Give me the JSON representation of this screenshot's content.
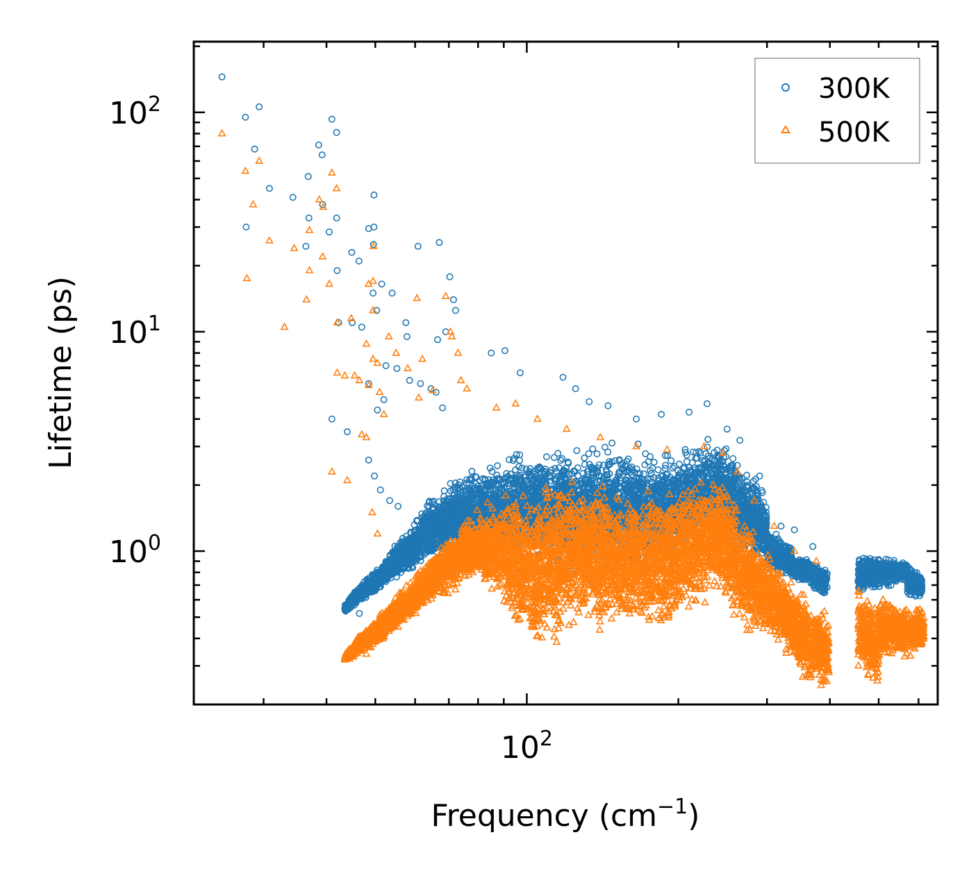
{
  "chart_data": {
    "type": "scatter",
    "xlabel": "Frequency (cm",
    "xlabel_sup": "−1",
    "xlabel_end": ")",
    "ylabel": "Lifetime (ps)",
    "xscale": "log",
    "yscale": "log",
    "xlim": [
      21.8,
      655
    ],
    "ylim": [
      0.2,
      210
    ],
    "x_tick_labels": [
      {
        "base": "10",
        "exp": "2",
        "value": 100
      }
    ],
    "y_tick_labels": [
      {
        "base": "10",
        "exp": "0",
        "value": 1
      },
      {
        "base": "10",
        "exp": "1",
        "value": 10
      },
      {
        "base": "10",
        "exp": "2",
        "value": 100
      }
    ],
    "legend": {
      "position": "top-right",
      "entries": [
        "300K",
        "500K"
      ]
    },
    "series": [
      {
        "name": "300K",
        "marker": "circle",
        "color": "#1f77b4",
        "outliers": [
          [
            24.8,
            145
          ],
          [
            27.6,
            95
          ],
          [
            28.8,
            68
          ],
          [
            29.4,
            106
          ],
          [
            30.8,
            45
          ],
          [
            27.7,
            30
          ],
          [
            34.3,
            41
          ],
          [
            36.4,
            24.5
          ],
          [
            36.8,
            51
          ],
          [
            36.9,
            33
          ],
          [
            38.6,
            71
          ],
          [
            39.2,
            64
          ],
          [
            39.3,
            38
          ],
          [
            41,
            93
          ],
          [
            41.9,
            81
          ],
          [
            40.5,
            28.5
          ],
          [
            41.9,
            33
          ],
          [
            42,
            19
          ],
          [
            44.9,
            23
          ],
          [
            46.4,
            21
          ],
          [
            48.5,
            29.5
          ],
          [
            49.7,
            42
          ],
          [
            49.7,
            30
          ],
          [
            49.6,
            25
          ],
          [
            42.3,
            11
          ],
          [
            45,
            11
          ],
          [
            47,
            10.5
          ],
          [
            49.5,
            15
          ],
          [
            50.3,
            12.5
          ],
          [
            51.5,
            16.5
          ],
          [
            54,
            15
          ],
          [
            57.5,
            11
          ],
          [
            57.8,
            9.5
          ],
          [
            60.8,
            24.5
          ],
          [
            67,
            25.5
          ],
          [
            70.3,
            17.8
          ],
          [
            71.5,
            14
          ],
          [
            72.2,
            12.5
          ],
          [
            69,
            10
          ],
          [
            66.5,
            9.2
          ],
          [
            41,
            4
          ],
          [
            44,
            3.5
          ],
          [
            52.5,
            7
          ],
          [
            55.2,
            6.8
          ],
          [
            58.5,
            6
          ],
          [
            61.5,
            5.8
          ],
          [
            64.5,
            5.5
          ],
          [
            66,
            5.3
          ],
          [
            48.5,
            5.8
          ],
          [
            50.5,
            4.4
          ],
          [
            52,
            4.9
          ],
          [
            68,
            4.5
          ],
          [
            85,
            8
          ],
          [
            90.5,
            8.2
          ],
          [
            97,
            6.5
          ],
          [
            118,
            6.2
          ],
          [
            125,
            5.5
          ],
          [
            133,
            4.8
          ],
          [
            145,
            4.6
          ],
          [
            165,
            4
          ],
          [
            185,
            4.2
          ],
          [
            210,
            4.3
          ],
          [
            228,
            4.7
          ],
          [
            250,
            3.6
          ],
          [
            265,
            3.2
          ],
          [
            290,
            2.2
          ],
          [
            320,
            1.3
          ],
          [
            340,
            1.25
          ],
          [
            370,
            1.05
          ],
          [
            48.5,
            2.6
          ],
          [
            49.8,
            2.2
          ],
          [
            51.2,
            1.9
          ],
          [
            53.4,
            1.7
          ],
          [
            55.5,
            1.6
          ],
          [
            43.5,
            0.55
          ],
          [
            45,
            0.6
          ],
          [
            46.5,
            0.52
          ]
        ],
        "bands": [
          {
            "x": [
              43.5,
              52
            ],
            "lo": [
              0.52,
              0.68
            ],
            "hi": [
              0.58,
              0.9
            ]
          },
          {
            "x": [
              52,
              58
            ],
            "lo": [
              0.68,
              0.75
            ],
            "hi": [
              0.9,
              1.3
            ]
          },
          {
            "x": [
              58,
              70
            ],
            "lo": [
              0.75,
              0.92
            ],
            "hi": [
              1.3,
              2.2
            ]
          },
          {
            "x": [
              70,
              95
            ],
            "lo": [
              0.92,
              0.82
            ],
            "hi": [
              2.2,
              3.0
            ]
          },
          {
            "x": [
              95,
              140
            ],
            "lo": [
              0.82,
              0.78
            ],
            "hi": [
              3.0,
              3.2
            ]
          },
          {
            "x": [
              140,
              200
            ],
            "lo": [
              0.78,
              0.82
            ],
            "hi": [
              3.2,
              3.1
            ]
          },
          {
            "x": [
              200,
              240
            ],
            "lo": [
              0.82,
              1.0
            ],
            "hi": [
              3.1,
              3.6
            ]
          },
          {
            "x": [
              240,
              275
            ],
            "lo": [
              1.0,
              0.85
            ],
            "hi": [
              3.6,
              2.5
            ]
          },
          {
            "x": [
              275,
              300
            ],
            "lo": [
              0.85,
              0.85
            ],
            "hi": [
              2.5,
              1.9
            ]
          },
          {
            "x": [
              300,
              335
            ],
            "lo": [
              0.8,
              0.75
            ],
            "hi": [
              1.3,
              1.1
            ]
          },
          {
            "x": [
              335,
              365
            ],
            "lo": [
              0.72,
              0.72
            ],
            "hi": [
              1.0,
              0.92
            ]
          },
          {
            "x": [
              365,
              395
            ],
            "lo": [
              0.68,
              0.6
            ],
            "hi": [
              0.92,
              0.85
            ]
          },
          {
            "x": [
              455,
              570
            ],
            "lo": [
              0.62,
              0.72
            ],
            "hi": [
              0.98,
              0.92
            ]
          },
          {
            "x": [
              570,
              610
            ],
            "lo": [
              0.6,
              0.6
            ],
            "hi": [
              0.9,
              0.8
            ]
          }
        ]
      },
      {
        "name": "500K",
        "marker": "triangle",
        "color": "#ff7f0e",
        "outliers": [
          [
            24.8,
            80
          ],
          [
            27.6,
            54
          ],
          [
            28.6,
            38
          ],
          [
            29.4,
            60
          ],
          [
            30.8,
            26
          ],
          [
            27.8,
            17.5
          ],
          [
            33,
            10.5
          ],
          [
            34.5,
            24
          ],
          [
            36.5,
            14
          ],
          [
            37,
            29
          ],
          [
            37,
            19
          ],
          [
            38.7,
            40
          ],
          [
            39.4,
            37
          ],
          [
            39.3,
            22
          ],
          [
            40.5,
            16.5
          ],
          [
            41,
            53
          ],
          [
            41.9,
            45
          ],
          [
            42,
            11
          ],
          [
            42,
            6.5
          ],
          [
            43.5,
            6.3
          ],
          [
            44.8,
            11.5
          ],
          [
            45.5,
            6.3
          ],
          [
            46.5,
            6
          ],
          [
            47,
            3.4
          ],
          [
            48,
            3.3
          ],
          [
            48.5,
            16.5
          ],
          [
            49.6,
            24.5
          ],
          [
            49.5,
            17
          ],
          [
            49.5,
            12.5
          ],
          [
            48,
            8.8
          ],
          [
            49.5,
            7.5
          ],
          [
            50.5,
            7.2
          ],
          [
            48.5,
            5.7
          ],
          [
            51,
            5.3
          ],
          [
            52,
            4.2
          ],
          [
            53.2,
            9.5
          ],
          [
            55,
            8
          ],
          [
            58,
            6.8
          ],
          [
            60.5,
            14.2
          ],
          [
            61,
            5
          ],
          [
            62,
            7.5
          ],
          [
            65,
            5.4
          ],
          [
            69,
            14.5
          ],
          [
            70.5,
            10
          ],
          [
            71,
            9.5
          ],
          [
            73,
            8
          ],
          [
            74,
            6
          ],
          [
            76,
            5.5
          ],
          [
            41,
            2.3
          ],
          [
            44,
            2.1
          ],
          [
            49.3,
            1.5
          ],
          [
            50.5,
            1.2
          ],
          [
            43.5,
            0.32
          ],
          [
            45,
            0.33
          ],
          [
            48,
            0.34
          ],
          [
            87,
            4.5
          ],
          [
            95,
            4.7
          ],
          [
            105,
            4
          ],
          [
            120,
            3.6
          ],
          [
            140,
            3.3
          ],
          [
            165,
            3
          ],
          [
            190,
            2.9
          ],
          [
            225,
            3.0
          ],
          [
            245,
            2.8
          ],
          [
            262,
            2.3
          ],
          [
            283,
            1.7
          ],
          [
            310,
            1.3
          ],
          [
            340,
            1.0
          ],
          [
            376,
            0.9
          ]
        ],
        "bands": [
          {
            "x": [
              43.5,
              52
            ],
            "lo": [
              0.31,
              0.38
            ],
            "hi": [
              0.34,
              0.55
            ]
          },
          {
            "x": [
              52,
              60
            ],
            "lo": [
              0.38,
              0.5
            ],
            "hi": [
              0.55,
              0.78
            ]
          },
          {
            "x": [
              60,
              78
            ],
            "lo": [
              0.5,
              0.72
            ],
            "hi": [
              0.78,
              1.5
            ]
          },
          {
            "x": [
              78,
              90
            ],
            "lo": [
              0.72,
              0.55
            ],
            "hi": [
              1.5,
              1.9
            ]
          },
          {
            "x": [
              90,
              105
            ],
            "lo": [
              0.5,
              0.3
            ],
            "hi": [
              1.9,
              2.2
            ]
          },
          {
            "x": [
              105,
              130
            ],
            "lo": [
              0.3,
              0.42
            ],
            "hi": [
              2.2,
              2.3
            ]
          },
          {
            "x": [
              130,
              160
            ],
            "lo": [
              0.42,
              0.4
            ],
            "hi": [
              2.3,
              2.0
            ]
          },
          {
            "x": [
              160,
              200
            ],
            "lo": [
              0.4,
              0.42
            ],
            "hi": [
              2.0,
              2.1
            ]
          },
          {
            "x": [
              200,
              240
            ],
            "lo": [
              0.45,
              0.58
            ],
            "hi": [
              2.1,
              2.5
            ]
          },
          {
            "x": [
              240,
              270
            ],
            "lo": [
              0.58,
              0.4
            ],
            "hi": [
              2.5,
              1.5
            ]
          },
          {
            "x": [
              270,
              305
            ],
            "lo": [
              0.38,
              0.38
            ],
            "hi": [
              1.5,
              1.0
            ]
          },
          {
            "x": [
              305,
              340
            ],
            "lo": [
              0.36,
              0.3
            ],
            "hi": [
              1.0,
              0.75
            ]
          },
          {
            "x": [
              340,
              370
            ],
            "lo": [
              0.26,
              0.22
            ],
            "hi": [
              0.75,
              0.62
            ]
          },
          {
            "x": [
              370,
              398
            ],
            "lo": [
              0.24,
              0.22
            ],
            "hi": [
              0.6,
              0.55
            ]
          },
          {
            "x": [
              455,
              500
            ],
            "lo": [
              0.28,
              0.22
            ],
            "hi": [
              0.7,
              0.6
            ]
          },
          {
            "x": [
              500,
              615
            ],
            "lo": [
              0.3,
              0.34
            ],
            "hi": [
              0.65,
              0.55
            ]
          }
        ]
      }
    ]
  }
}
